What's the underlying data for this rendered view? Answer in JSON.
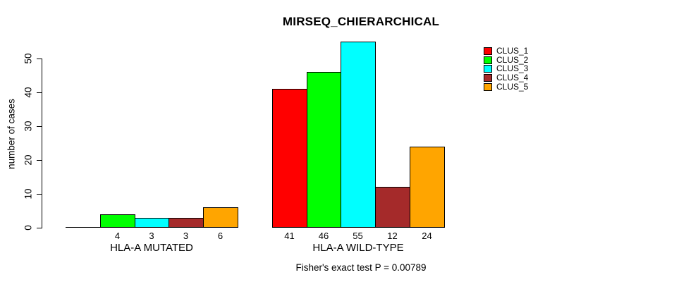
{
  "figure": {
    "background": "#FFFFFF",
    "text_color": "#000000"
  },
  "chart_data": {
    "type": "bar",
    "title": "MIRSEQ_CHIERARCHICAL",
    "ylabel": "number of cases",
    "xlabel": "",
    "ylim": [
      0,
      55
    ],
    "yticks": [
      0,
      10,
      20,
      30,
      40,
      50
    ],
    "grid": false,
    "categories": [
      "HLA-A MUTATED",
      "HLA-A WILD-TYPE"
    ],
    "series": [
      {
        "name": "CLUS_1",
        "color": "#FF0000",
        "values": [
          0,
          41
        ]
      },
      {
        "name": "CLUS_2",
        "color": "#00FF00",
        "values": [
          4,
          46
        ]
      },
      {
        "name": "CLUS_3",
        "color": "#00FFFF",
        "values": [
          3,
          55
        ]
      },
      {
        "name": "CLUS_4",
        "color": "#A52A2A",
        "values": [
          3,
          12
        ]
      },
      {
        "name": "CLUS_5",
        "color": "#FFA500",
        "values": [
          6,
          24
        ]
      }
    ],
    "value_labels_shown": [
      [
        "",
        "4",
        "3",
        "3",
        "6"
      ],
      [
        "41",
        "46",
        "55",
        "12",
        "24"
      ]
    ],
    "legend": {
      "position": "top-right",
      "entries": [
        "CLUS_1",
        "CLUS_2",
        "CLUS_3",
        "CLUS_4",
        "CLUS_5"
      ]
    },
    "caption": "Fisher's exact test P = 0.00789"
  }
}
